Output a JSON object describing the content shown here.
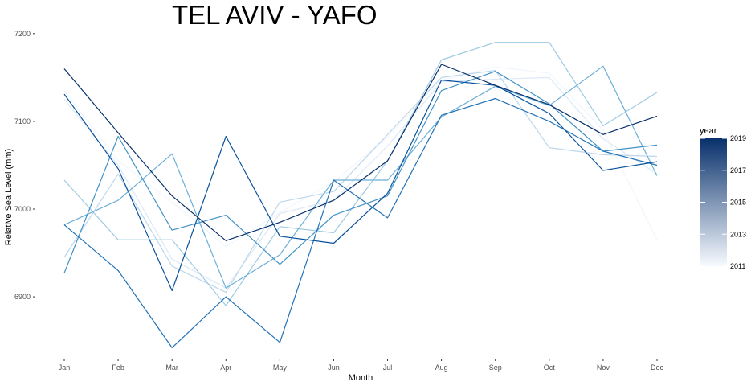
{
  "chart_data": {
    "type": "line",
    "title": "TEL AVIV - YAFO",
    "xlabel": "Month",
    "ylabel": "Relative Sea Level (mm)",
    "categories": [
      "Jan",
      "Feb",
      "Mar",
      "Apr",
      "May",
      "Jun",
      "Jul",
      "Aug",
      "Sep",
      "Oct",
      "Nov",
      "Dec"
    ],
    "yticks": [
      6900,
      7000,
      7100,
      7200
    ],
    "ylim": [
      6835,
      7220
    ],
    "grid": false,
    "legend": {
      "title": "year",
      "position": "right",
      "labels": [
        "2019",
        "2017",
        "2015",
        "2013",
        "2011"
      ],
      "range": [
        2011,
        2019
      ],
      "color_low": "#f7fbff",
      "color_high": "#08306b"
    },
    "series": [
      {
        "year": 2011,
        "color": "#f0f6fd",
        "values": [
          7135,
          7055,
          7008,
          6957,
          6996,
          7031,
          7082,
          7147,
          7162,
          7155,
          7090,
          6965
        ]
      },
      {
        "year": 2012,
        "color": "#dbe9f6",
        "values": [
          7125,
          7050,
          6943,
          6910,
          6995,
          7010,
          7072,
          7145,
          7148,
          7150,
          7080,
          7040
        ]
      },
      {
        "year": 2013,
        "color": "#bdd7ec",
        "values": [
          6945,
          7040,
          6935,
          6905,
          7008,
          7020,
          7085,
          7150,
          7158,
          7070,
          7062,
          7060
        ]
      },
      {
        "year": 2014,
        "color": "#9ecae1",
        "values": [
          7033,
          6965,
          6965,
          6890,
          6980,
          6973,
          7055,
          7170,
          7190,
          7190,
          7095,
          7133
        ]
      },
      {
        "year": 2015,
        "color": "#6baed6",
        "values": [
          6982,
          7010,
          7063,
          6910,
          6948,
          7033,
          7033,
          7105,
          7140,
          7118,
          7163,
          7038
        ]
      },
      {
        "year": 2016,
        "color": "#4292c6",
        "values": [
          6927,
          7083,
          6976,
          6993,
          6937,
          6993,
          7015,
          7135,
          7157,
          7120,
          7066,
          7073
        ]
      },
      {
        "year": 2017,
        "color": "#2171b5",
        "values": [
          6982,
          6930,
          6842,
          6900,
          6848,
          7033,
          6990,
          7107,
          7126,
          7100,
          7066,
          7050
        ]
      },
      {
        "year": 2018,
        "color": "#08519c",
        "values": [
          7131,
          7046,
          6907,
          7083,
          6969,
          6961,
          7018,
          7147,
          7141,
          7109,
          7044,
          7054
        ]
      },
      {
        "year": 2019,
        "color": "#08306b",
        "values": [
          7160,
          7087,
          7015,
          6964,
          6985,
          7010,
          7055,
          7165,
          7141,
          7119,
          7085,
          7106
        ]
      }
    ]
  }
}
